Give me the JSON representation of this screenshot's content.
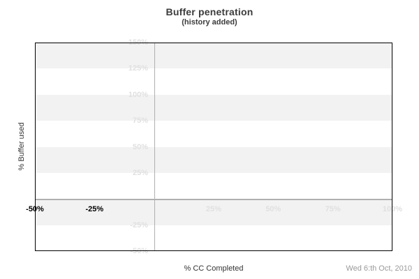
{
  "header": {
    "title": "Buffer penetration",
    "subtitle": "(history added)"
  },
  "footer": {
    "x_axis_title": "% CC Completed",
    "date": "Wed 6:th Oct, 2010"
  },
  "chart_data": {
    "type": "line",
    "title": "Buffer penetration",
    "subtitle": "(history added)",
    "xlabel": "% CC Completed",
    "ylabel": "% Buffer used",
    "date_annotation": "Wed 6:th Oct, 2010",
    "xlim": [
      -50,
      100
    ],
    "ylim": [
      -50,
      150
    ],
    "x_ticks": [
      {
        "value": -50,
        "label": "-50%",
        "emphasis": true
      },
      {
        "value": -25,
        "label": "-25%",
        "emphasis": true
      },
      {
        "value": 25,
        "label": "25%",
        "emphasis": false
      },
      {
        "value": 50,
        "label": "50%",
        "emphasis": false
      },
      {
        "value": 75,
        "label": "75%",
        "emphasis": false
      },
      {
        "value": 100,
        "label": "100%",
        "emphasis": false
      }
    ],
    "y_ticks": [
      {
        "value": 150,
        "label": "150%"
      },
      {
        "value": 125,
        "label": "125%"
      },
      {
        "value": 100,
        "label": "100%"
      },
      {
        "value": 75,
        "label": "75%"
      },
      {
        "value": 50,
        "label": "50%"
      },
      {
        "value": 25,
        "label": "25%"
      },
      {
        "value": -25,
        "label": "-25%"
      },
      {
        "value": -50,
        "label": "-50%"
      }
    ],
    "bands": {
      "interval": 25,
      "start_at": 150,
      "pattern": [
        "band",
        "white"
      ]
    },
    "zero_lines": {
      "vertical_at_x": 0,
      "horizontal_at_y": 0
    },
    "legend": null,
    "series": [],
    "colors": {
      "band": "#f2f2f2",
      "plot_background": "#ffffff",
      "zero_line": "#b0b0b0",
      "faint_label": "#e0e0e0",
      "emphasis_label": "#000000",
      "title": "#3b3b3b",
      "axis_title": "#333333",
      "date": "#999999",
      "border": "#000000"
    }
  }
}
